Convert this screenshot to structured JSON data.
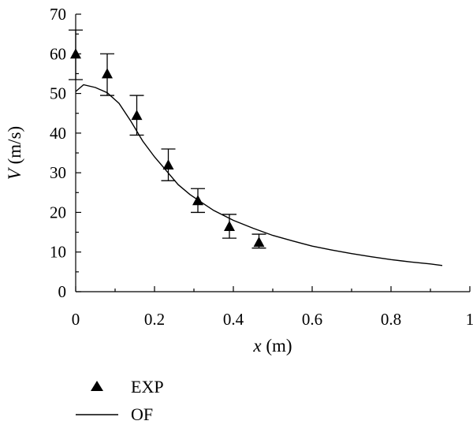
{
  "chart_data": {
    "type": "scatter",
    "xlabel_var": "x",
    "xlabel_unit": " (m)",
    "ylabel_var": "V",
    "ylabel_unit": " (m/s)",
    "xlim": [
      0,
      1
    ],
    "ylim": [
      0,
      70
    ],
    "x_ticks": [
      0,
      0.2,
      0.4,
      0.6,
      0.8,
      1
    ],
    "x_tick_labels": [
      "0",
      "0.2",
      "0.4",
      "0.6",
      "0.8",
      "1"
    ],
    "y_ticks": [
      0,
      10,
      20,
      30,
      40,
      50,
      60,
      70
    ],
    "y_tick_labels": [
      "0",
      "10",
      "20",
      "30",
      "40",
      "50",
      "60",
      "70"
    ],
    "grid": false,
    "legend_position": "bottom-left",
    "series": [
      {
        "name": "EXP",
        "kind": "scatter",
        "marker": "triangle",
        "x": [
          0,
          0.08,
          0.155,
          0.235,
          0.31,
          0.39,
          0.465
        ],
        "y": [
          60,
          55,
          44.5,
          32,
          23,
          16.5,
          12.5
        ],
        "err_low": [
          53.5,
          49.5,
          39.5,
          28,
          20,
          13.5,
          11
        ],
        "err_high": [
          66,
          60,
          49.5,
          36,
          26,
          19.5,
          14.5
        ]
      },
      {
        "name": "OF",
        "kind": "line",
        "x": [
          0,
          0.02,
          0.05,
          0.08,
          0.11,
          0.14,
          0.17,
          0.2,
          0.23,
          0.26,
          0.29,
          0.32,
          0.35,
          0.4,
          0.45,
          0.5,
          0.55,
          0.6,
          0.65,
          0.7,
          0.75,
          0.8,
          0.85,
          0.9,
          0.93
        ],
        "y": [
          50.5,
          52.2,
          51.5,
          50.2,
          47.5,
          43,
          38,
          34,
          30.5,
          27,
          24.5,
          22.5,
          20.5,
          18,
          16,
          14.2,
          12.8,
          11.5,
          10.5,
          9.6,
          8.8,
          8.1,
          7.5,
          7,
          6.6
        ]
      }
    ]
  }
}
